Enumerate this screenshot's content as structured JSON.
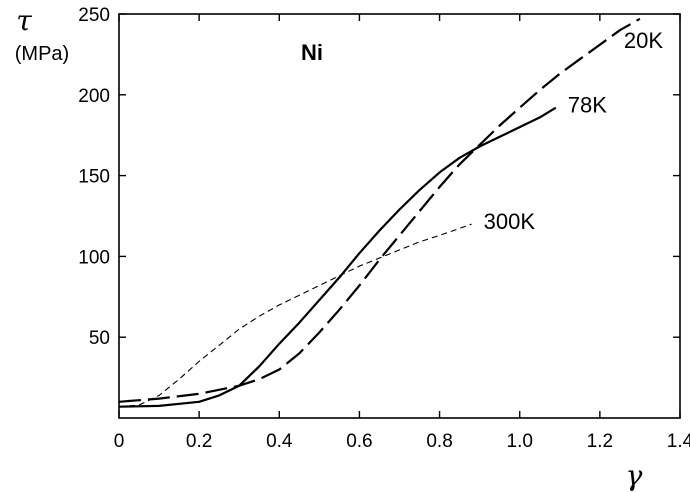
{
  "chart_data": {
    "type": "line",
    "ylabel": "τ",
    "yunit": "(MPa)",
    "xlabel": "γ",
    "annotation": "Ni",
    "xlim": [
      0,
      1.4
    ],
    "ylim": [
      0,
      250
    ],
    "xticks": [
      0,
      0.2,
      0.4,
      0.6,
      0.8,
      1.0,
      1.2,
      1.4
    ],
    "xtick_labels": [
      "0",
      "0.2",
      "0.4",
      "0.6",
      "0.8",
      "1.0",
      "1.2",
      "1.4"
    ],
    "yticks": [
      50,
      100,
      150,
      200,
      250
    ],
    "ytick_labels": [
      "50",
      "100",
      "150",
      "200",
      "250"
    ],
    "grid": false,
    "series": [
      {
        "name": "20K",
        "style": "long-dash",
        "x": [
          0,
          0.1,
          0.2,
          0.3,
          0.35,
          0.4,
          0.45,
          0.5,
          0.55,
          0.6,
          0.65,
          0.7,
          0.75,
          0.8,
          0.85,
          0.9,
          0.95,
          1.0,
          1.05,
          1.1,
          1.15,
          1.2,
          1.25,
          1.3
        ],
        "y": [
          10,
          12,
          15,
          20,
          24,
          30,
          40,
          53,
          67,
          82,
          98,
          113,
          128,
          143,
          157,
          169,
          181,
          192,
          203,
          213,
          222,
          231,
          240,
          247
        ]
      },
      {
        "name": "78K",
        "style": "solid",
        "x": [
          0,
          0.1,
          0.2,
          0.25,
          0.3,
          0.35,
          0.4,
          0.45,
          0.5,
          0.55,
          0.6,
          0.65,
          0.7,
          0.75,
          0.8,
          0.85,
          0.9,
          0.95,
          1.0,
          1.05,
          1.09
        ],
        "y": [
          7,
          7.5,
          10,
          14,
          20,
          32,
          46,
          59,
          73,
          87,
          102,
          116,
          129,
          141,
          152,
          161,
          168,
          174,
          180,
          186,
          192
        ]
      },
      {
        "name": "300K",
        "style": "short-dash",
        "x": [
          0,
          0.05,
          0.1,
          0.15,
          0.2,
          0.25,
          0.3,
          0.35,
          0.4,
          0.45,
          0.5,
          0.55,
          0.6,
          0.65,
          0.7,
          0.75,
          0.8,
          0.88
        ],
        "y": [
          7,
          8,
          14,
          24,
          35,
          45,
          55,
          63,
          70,
          76,
          82,
          88,
          94,
          99,
          104,
          109,
          113,
          120
        ]
      }
    ],
    "series_label_positions": [
      {
        "name": "20K",
        "at": [
          1.26,
          229
        ]
      },
      {
        "name": "78K",
        "at": [
          1.12,
          189
        ]
      },
      {
        "name": "300K",
        "at": [
          0.91,
          117
        ]
      }
    ]
  }
}
